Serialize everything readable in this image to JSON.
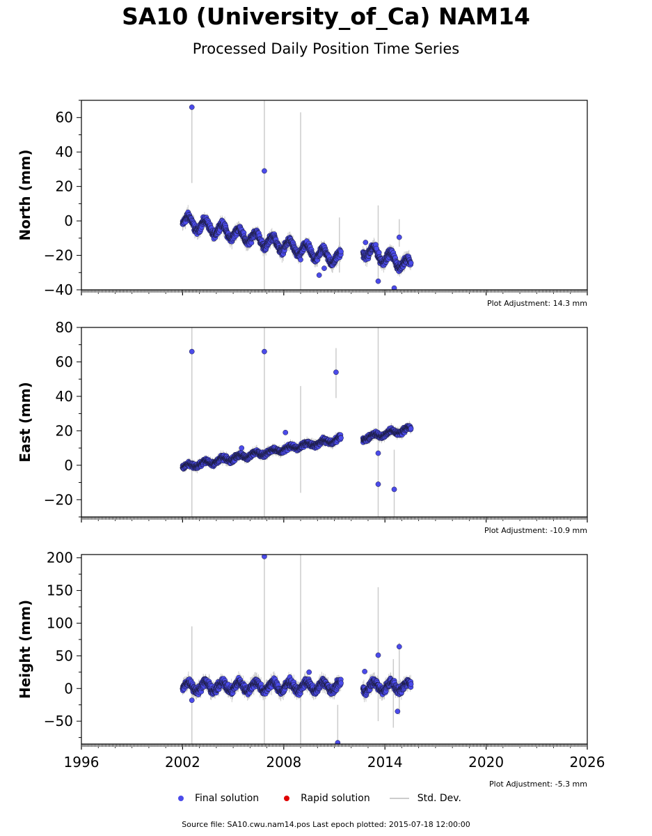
{
  "header": {
    "title": "SA10 (University_of_Ca) NAM14",
    "subtitle": "Processed Daily Position Time Series"
  },
  "footer": {
    "legend": [
      {
        "label": "Final solution",
        "color": "#4b4bea"
      },
      {
        "label": "Rapid solution",
        "color": "#e00000"
      },
      {
        "label": "Std. Dev.",
        "color": "#cccccc"
      }
    ],
    "source": "Source file: SA10.cwu.nam14.pos  Last epoch plotted: 2015-07-18 12:00:00"
  },
  "colors": {
    "final": "#4b4bea",
    "rapid": "#e00000",
    "stddev": "#cccccc",
    "marker_edge": "#1a1a3a"
  },
  "chart_data": [
    {
      "type": "scatter",
      "ylabel": "North (mm)",
      "xlim": [
        1996,
        2026
      ],
      "ylim": [
        -40,
        70
      ],
      "yticks": [
        -40,
        -20,
        0,
        20,
        40,
        60
      ],
      "xticks": [
        1996,
        2002,
        2008,
        2014,
        2020,
        2026
      ],
      "adjustment": "Plot Adjustment: 14.3 mm",
      "trend": {
        "start_year": 2002.0,
        "end_year": 2015.55,
        "gap": [
          2011.4,
          2012.7
        ],
        "points": [
          [
            2002.0,
            0
          ],
          [
            2011.3,
            -22
          ],
          [
            2012.8,
            -17
          ],
          [
            2015.55,
            -26
          ]
        ],
        "seasonal_amp": 3.5,
        "noise": 1.8
      },
      "outliers": [
        [
          2002.55,
          66
        ],
        [
          2006.85,
          29
        ],
        [
          2009.0,
          -22.5
        ],
        [
          2010.1,
          -31.5
        ],
        [
          2010.4,
          -27.5
        ],
        [
          2012.85,
          -12.5
        ],
        [
          2013.6,
          -35
        ],
        [
          2014.55,
          -39
        ],
        [
          2014.85,
          -9.5
        ],
        [
          2013.5,
          -16
        ]
      ],
      "errorbars": [
        [
          2002.55,
          22,
          66
        ],
        [
          2006.85,
          -40,
          70
        ],
        [
          2009.0,
          -40,
          63
        ],
        [
          2011.3,
          -30,
          2
        ],
        [
          2013.6,
          -35,
          9
        ],
        [
          2014.85,
          -15,
          1
        ]
      ]
    },
    {
      "type": "scatter",
      "ylabel": "East (mm)",
      "xlim": [
        1996,
        2026
      ],
      "ylim": [
        -30,
        80
      ],
      "yticks": [
        -20,
        0,
        20,
        40,
        60,
        80
      ],
      "xticks": [
        1996,
        2002,
        2008,
        2014,
        2020,
        2026
      ],
      "adjustment": "Plot Adjustment: -10.9 mm",
      "trend": {
        "start_year": 2002.0,
        "end_year": 2015.55,
        "gap": [
          2011.4,
          2012.7
        ],
        "points": [
          [
            2002.0,
            -1
          ],
          [
            2011.3,
            15
          ],
          [
            2012.8,
            16
          ],
          [
            2015.55,
            21
          ]
        ],
        "seasonal_amp": 1.2,
        "noise": 1.2
      },
      "outliers": [
        [
          2002.55,
          66
        ],
        [
          2006.85,
          66
        ],
        [
          2011.1,
          54
        ],
        [
          2008.1,
          19
        ],
        [
          2005.5,
          10
        ],
        [
          2013.6,
          7
        ],
        [
          2013.6,
          -11
        ],
        [
          2014.55,
          -14
        ]
      ],
      "errorbars": [
        [
          2002.55,
          -30,
          80
        ],
        [
          2006.85,
          -30,
          80
        ],
        [
          2009.0,
          -16,
          46
        ],
        [
          2011.1,
          39,
          68
        ],
        [
          2013.6,
          -30,
          80
        ],
        [
          2014.55,
          -30,
          9
        ]
      ]
    },
    {
      "type": "scatter",
      "ylabel": "Height (mm)",
      "xlim": [
        1996,
        2026
      ],
      "ylim": [
        -85,
        205
      ],
      "yticks": [
        -50,
        0,
        50,
        100,
        150,
        200
      ],
      "xticks": [
        1996,
        2002,
        2008,
        2014,
        2020,
        2026
      ],
      "xtick_labels": [
        "1996",
        "2002",
        "2008",
        "2014",
        "2020",
        "2026"
      ],
      "adjustment": "Plot Adjustment: -5.3 mm",
      "trend": {
        "start_year": 2002.0,
        "end_year": 2015.55,
        "gap": [
          2011.4,
          2012.7
        ],
        "points": [
          [
            2002.0,
            3
          ],
          [
            2011.3,
            3
          ],
          [
            2012.8,
            3
          ],
          [
            2015.55,
            3
          ]
        ],
        "seasonal_amp": 7,
        "noise": 5
      },
      "outliers": [
        [
          2006.85,
          202
        ],
        [
          2002.55,
          -18
        ],
        [
          2009.5,
          25
        ],
        [
          2011.2,
          -83
        ],
        [
          2012.8,
          26
        ],
        [
          2013.6,
          51
        ],
        [
          2014.85,
          64
        ],
        [
          2014.75,
          -35
        ]
      ],
      "errorbars": [
        [
          2002.55,
          -85,
          95
        ],
        [
          2006.85,
          -85,
          205
        ],
        [
          2009.0,
          -85,
          205
        ],
        [
          2009.0,
          -85,
          100
        ],
        [
          2011.2,
          -85,
          -25
        ],
        [
          2013.6,
          -50,
          155
        ],
        [
          2014.5,
          -60,
          45
        ],
        [
          2014.85,
          -40,
          70
        ]
      ]
    }
  ]
}
